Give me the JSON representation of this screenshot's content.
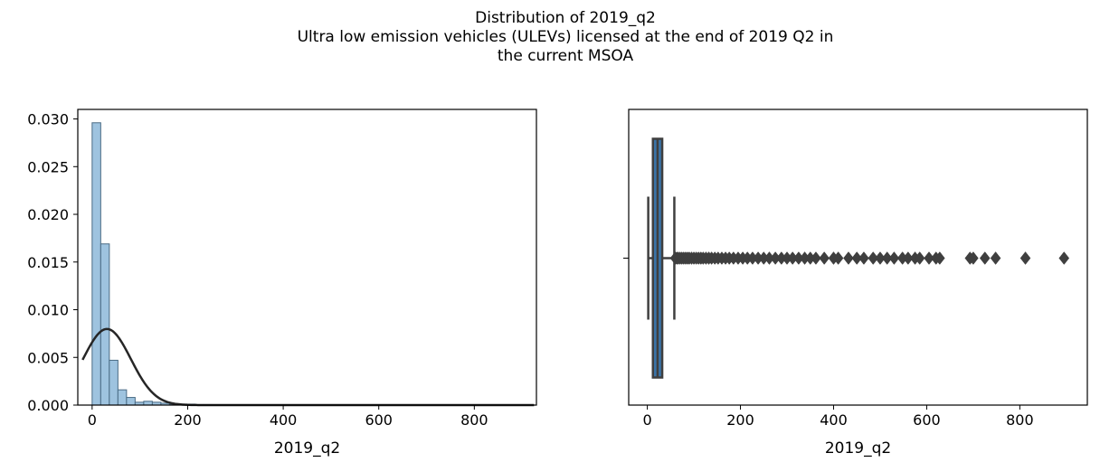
{
  "title": {
    "line1": "Distribution of 2019_q2",
    "line2": "Ultra low emission vehicles (ULEVs) licensed at the end of 2019 Q2 in",
    "line3": "the current MSOA"
  },
  "colors": {
    "hist_fill": "#9ec3df",
    "hist_edge": "#4a6b84",
    "kde_line": "#262626",
    "box_fill": "#3a74a8",
    "box_edge": "#3f3f3f",
    "flier": "#3f3f3f",
    "axes": "#000000"
  },
  "chart_data": [
    {
      "type": "bar",
      "subtype": "histogram_with_normal_fit",
      "xlabel": "2019_q2",
      "ylabel": "",
      "xlim": [
        -30,
        930
      ],
      "ylim": [
        0,
        0.031
      ],
      "xticks": [
        0,
        200,
        400,
        600,
        800
      ],
      "yticks": [
        0.0,
        0.005,
        0.01,
        0.015,
        0.02,
        0.025,
        0.03
      ],
      "ytick_labels": [
        "0.000",
        "0.005",
        "0.010",
        "0.015",
        "0.020",
        "0.025",
        "0.030"
      ],
      "bin_start": 0,
      "bin_width": 18,
      "values": [
        0.0296,
        0.0169,
        0.0047,
        0.0016,
        0.0008,
        0.0003,
        0.0004,
        0.0003,
        0.0002,
        0.0001,
        0.0001,
        0.0001,
        5e-05,
        5e-05,
        4e-05,
        3e-05,
        3e-05,
        2e-05,
        2e-05,
        2e-05,
        1e-05,
        1e-05,
        1e-05,
        1e-05,
        1e-05,
        1e-05,
        1e-05,
        1e-05,
        1e-05,
        1e-05,
        1e-05,
        1e-05,
        1e-05,
        1e-05,
        1e-05,
        1e-05,
        1e-05,
        1e-05,
        1e-05,
        1e-05,
        1e-05,
        1e-05,
        1e-05,
        1e-05,
        1e-05,
        1e-05,
        1e-05,
        1e-05,
        1e-05,
        1e-05
      ],
      "fit": {
        "mean": 31,
        "std": 50,
        "x_range": [
          -20,
          925
        ]
      }
    },
    {
      "type": "box",
      "xlabel": "2019_q2",
      "xlim": [
        -40,
        945
      ],
      "xticks": [
        0,
        200,
        400,
        600,
        800
      ],
      "q1": 12,
      "median": 22,
      "q3": 32,
      "whisker_low": 2,
      "whisker_high": 58,
      "outliers": [
        60,
        63,
        66,
        70,
        74,
        78,
        82,
        86,
        90,
        95,
        100,
        105,
        110,
        115,
        120,
        126,
        132,
        138,
        145,
        152,
        160,
        168,
        176,
        185,
        195,
        205,
        215,
        226,
        238,
        250,
        262,
        275,
        288,
        300,
        312,
        325,
        338,
        350,
        362,
        380,
        400,
        410,
        432,
        450,
        465,
        485,
        500,
        515,
        530,
        548,
        560,
        575,
        585,
        605,
        620,
        628,
        693,
        700,
        725,
        748,
        812,
        895
      ]
    }
  ]
}
